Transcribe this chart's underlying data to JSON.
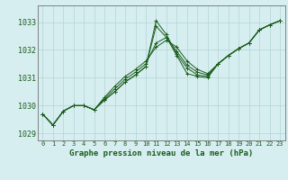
{
  "title": "Graphe pression niveau de la mer (hPa)",
  "bg_color": "#d6eef0",
  "grid_color": "#b8d8da",
  "line_color": "#1a5c1a",
  "xlim": [
    -0.5,
    23.5
  ],
  "ylim": [
    1028.75,
    1033.6
  ],
  "yticks": [
    1029,
    1030,
    1031,
    1032,
    1033
  ],
  "xtick_labels": [
    "0",
    "1",
    "2",
    "3",
    "4",
    "5",
    "6",
    "7",
    "8",
    "9",
    "10",
    "11",
    "12",
    "13",
    "14",
    "15",
    "16",
    "17",
    "18",
    "19",
    "20",
    "21",
    "22",
    "23"
  ],
  "series": [
    [
      1029.7,
      1029.3,
      1029.8,
      1030.0,
      1030.0,
      1029.85,
      1030.3,
      1030.7,
      1031.05,
      1031.3,
      1031.6,
      1032.1,
      1032.35,
      1032.1,
      1031.6,
      1031.3,
      1031.15,
      1031.5,
      1031.8,
      1032.05,
      1032.25,
      1032.72,
      1032.9,
      1033.05
    ],
    [
      1029.7,
      1029.3,
      1029.8,
      1030.0,
      1030.0,
      1029.85,
      1030.2,
      1030.5,
      1030.85,
      1031.1,
      1031.4,
      1033.05,
      1032.55,
      1031.85,
      1031.35,
      1031.1,
      1031.05,
      1031.5,
      1031.8,
      1032.05,
      1032.25,
      1032.72,
      1032.9,
      1033.05
    ],
    [
      1029.7,
      1029.3,
      1029.8,
      1030.0,
      1030.0,
      1029.85,
      1030.2,
      1030.5,
      1030.85,
      1031.1,
      1031.4,
      1032.85,
      1032.45,
      1031.8,
      1031.15,
      1031.05,
      1031.0,
      1031.5,
      1031.8,
      1032.05,
      1032.25,
      1032.72,
      1032.9,
      1033.05
    ],
    [
      1029.7,
      1029.3,
      1029.8,
      1030.0,
      1030.0,
      1029.85,
      1030.25,
      1030.6,
      1030.95,
      1031.2,
      1031.5,
      1032.25,
      1032.45,
      1031.95,
      1031.45,
      1031.2,
      1031.1,
      1031.5,
      1031.8,
      1032.05,
      1032.25,
      1032.72,
      1032.9,
      1033.05
    ]
  ]
}
